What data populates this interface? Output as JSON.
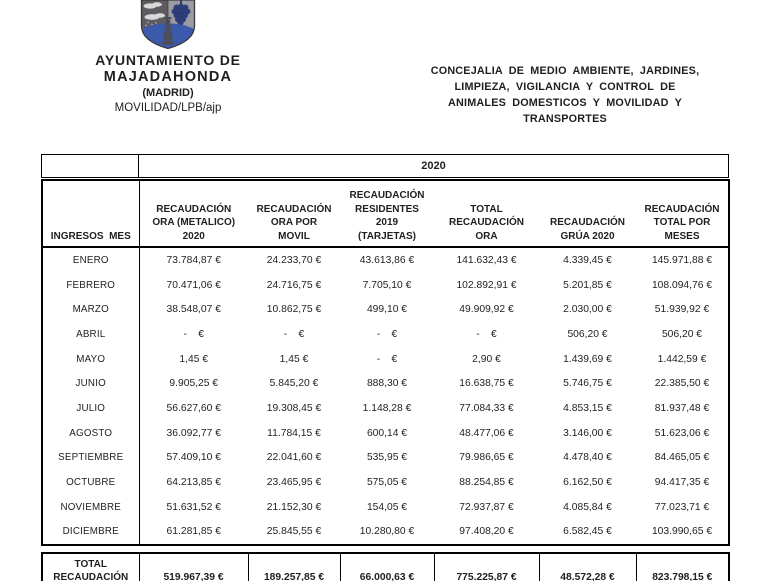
{
  "letterhead": {
    "org_name_line1": "AYUNTAMIENTO DE",
    "org_name_line2": "MAJADAHONDA",
    "org_region": "(MADRID)",
    "reference": "MOVILIDAD/LPB/ajp",
    "logo_colors": {
      "left_field_gray": "#5c5c61",
      "right_field_gray": "#9b9ba3",
      "base_blue": "#3c5aab",
      "grape_blue": "#2d3f7d",
      "cloud_gray": "#d9d9d9",
      "tower_gray": "#4e4e54"
    }
  },
  "department": {
    "lines": [
      "CONCEJALIA DE MEDIO AMBIENTE, JARDINES,",
      "LIMPIEZA, VIGILANCIA Y CONTROL DE",
      "ANIMALES DOMESTICOS Y MOVILIDAD Y",
      "TRANSPORTES"
    ]
  },
  "table": {
    "year_header": "2020",
    "row_header_label": "INGRESOS  MES",
    "columns": [
      "RECAUDACIÓN\nORA (METALICO)\n2020",
      "RECAUDACIÓN\nORA POR\nMOVIL",
      "RECAUDACIÓN\nRESIDENTES\n2019\n(TARJETAS)",
      "TOTAL\nRECAUDACIÓN\nORA",
      "RECAUDACIÓN\nGRÚA 2020",
      "RECAUDACIÓN\nTOTAL POR\nMESES"
    ],
    "rows": [
      {
        "month": "ENERO",
        "values": [
          "73.784,87 €",
          "24.233,70 €",
          "43.613,86 €",
          "141.632,43 €",
          "4.339,45 €",
          "145.971,88 €"
        ]
      },
      {
        "month": "FEBRERO",
        "values": [
          "70.471,06 €",
          "24.716,75 €",
          "7.705,10 €",
          "102.892,91 €",
          "5.201,85 €",
          "108.094,76 €"
        ]
      },
      {
        "month": "MARZO",
        "values": [
          "38.548,07 €",
          "10.862,75 €",
          "499,10 €",
          "49.909,92 €",
          "2.030,00 €",
          "51.939,92 €"
        ]
      },
      {
        "month": "ABRIL",
        "values": [
          "-    €",
          "-    €",
          "-    €",
          "-    €",
          "506,20 €",
          "506,20 €"
        ]
      },
      {
        "month": "MAYO",
        "values": [
          "1,45 €",
          "1,45 €",
          "-    €",
          "2,90 €",
          "1.439,69 €",
          "1.442,59 €"
        ]
      },
      {
        "month": "JUNIO",
        "values": [
          "9.905,25 €",
          "5.845,20 €",
          "888,30 €",
          "16.638,75 €",
          "5.746,75 €",
          "22.385,50 €"
        ]
      },
      {
        "month": "JULIO",
        "values": [
          "56.627,60 €",
          "19.308,45 €",
          "1.148,28 €",
          "77.084,33 €",
          "4.853,15 €",
          "81.937,48 €"
        ]
      },
      {
        "month": "AGOSTO",
        "values": [
          "36.092,77 €",
          "11.784,15 €",
          "600,14 €",
          "48.477,06 €",
          "3.146,00 €",
          "51.623,06 €"
        ]
      },
      {
        "month": "SEPTIEMBRE",
        "values": [
          "57.409,10 €",
          "22.041,60 €",
          "535,95 €",
          "79.986,65 €",
          "4.478,40 €",
          "84.465,05 €"
        ]
      },
      {
        "month": "OCTUBRE",
        "values": [
          "64.213,85 €",
          "23.465,95 €",
          "575,05 €",
          "88.254,85 €",
          "6.162,50 €",
          "94.417,35 €"
        ]
      },
      {
        "month": "NOVIEMBRE",
        "values": [
          "51.631,52 €",
          "21.152,30 €",
          "154,05 €",
          "72.937,87 €",
          "4.085,84 €",
          "77.023,71 €"
        ]
      },
      {
        "month": "DICIEMBRE",
        "values": [
          "61.281,85 €",
          "25.845,55 €",
          "10.280,80 €",
          "97.408,20 €",
          "6.582,45 €",
          "103.990,65 €"
        ]
      }
    ],
    "total_row": {
      "label": "TOTAL\nRECAUDACIÓN",
      "values": [
        "519.967,39 €",
        "189.257,85 €",
        "66.000,63 €",
        "775.225,87 €",
        "48.572,28 €",
        "823.798,15 €"
      ]
    }
  }
}
